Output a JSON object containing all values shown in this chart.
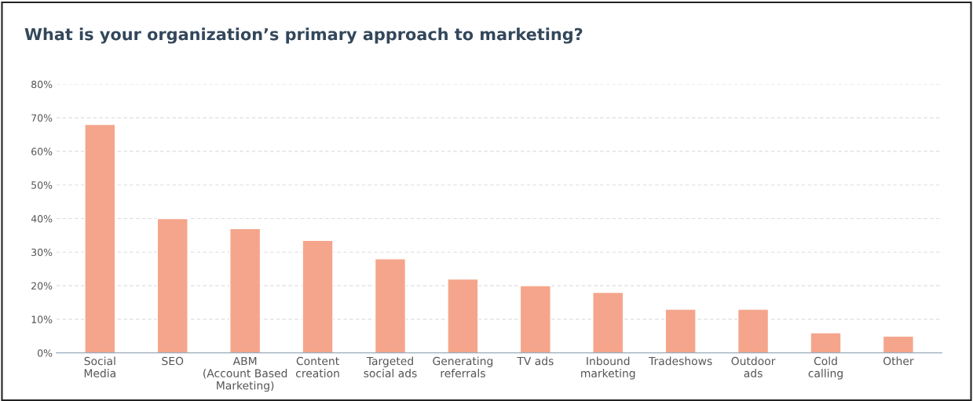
{
  "chart_data": {
    "type": "bar",
    "title": "What is your organization’s primary approach to marketing?",
    "categories": [
      "Social\nMedia",
      "SEO",
      "ABM\n(Account Based\nMarketing)",
      "Content\ncreation",
      "Targeted\nsocial ads",
      "Generating\nreferrals",
      "TV ads",
      "Inbound\nmarketing",
      "Tradeshows",
      "Outdoor\nads",
      "Cold\ncalling",
      "Other"
    ],
    "values": [
      68,
      40,
      37,
      33.5,
      28,
      22,
      20,
      18,
      13,
      13,
      6,
      5
    ],
    "color": "#f5a58b",
    "ylim": [
      0,
      80
    ],
    "yticks": [
      {
        "value": 0,
        "label": "0%"
      },
      {
        "value": 10,
        "label": "10%"
      },
      {
        "value": 20,
        "label": "20%"
      },
      {
        "value": 30,
        "label": "30%"
      },
      {
        "value": 40,
        "label": "40%"
      },
      {
        "value": 50,
        "label": "50%"
      },
      {
        "value": 60,
        "label": "60%"
      },
      {
        "value": 70,
        "label": "70%"
      },
      {
        "value": 80,
        "label": "80%"
      }
    ],
    "grid": "y"
  }
}
